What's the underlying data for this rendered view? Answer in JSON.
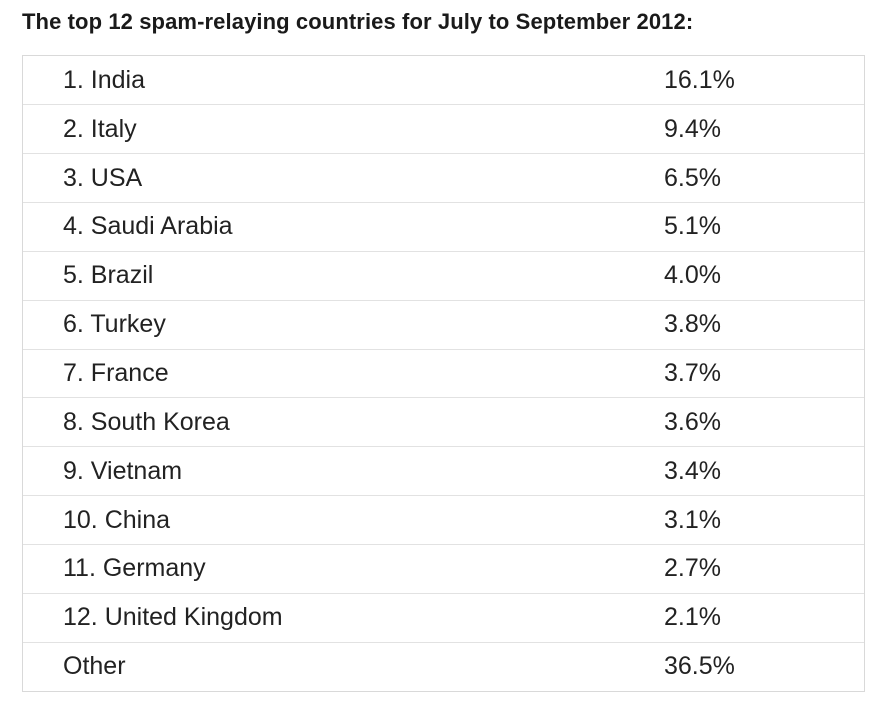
{
  "title": "The top 12 spam-relaying countries for July to September 2012:",
  "table": {
    "rows": [
      {
        "country": "1. India",
        "share": "16.1%"
      },
      {
        "country": "2. Italy",
        "share": "9.4%"
      },
      {
        "country": "3. USA",
        "share": "6.5%"
      },
      {
        "country": "4. Saudi Arabia",
        "share": "5.1%"
      },
      {
        "country": "5. Brazil",
        "share": "4.0%"
      },
      {
        "country": "6. Turkey",
        "share": "3.8%"
      },
      {
        "country": "7. France",
        "share": "3.7%"
      },
      {
        "country": "8. South Korea",
        "share": "3.6%"
      },
      {
        "country": "9. Vietnam",
        "share": "3.4%"
      },
      {
        "country": "10. China",
        "share": "3.1%"
      },
      {
        "country": "11. Germany",
        "share": "2.7%"
      },
      {
        "country": "12. United Kingdom",
        "share": "2.1%"
      },
      {
        "country": "Other",
        "share": "36.5%"
      }
    ]
  }
}
